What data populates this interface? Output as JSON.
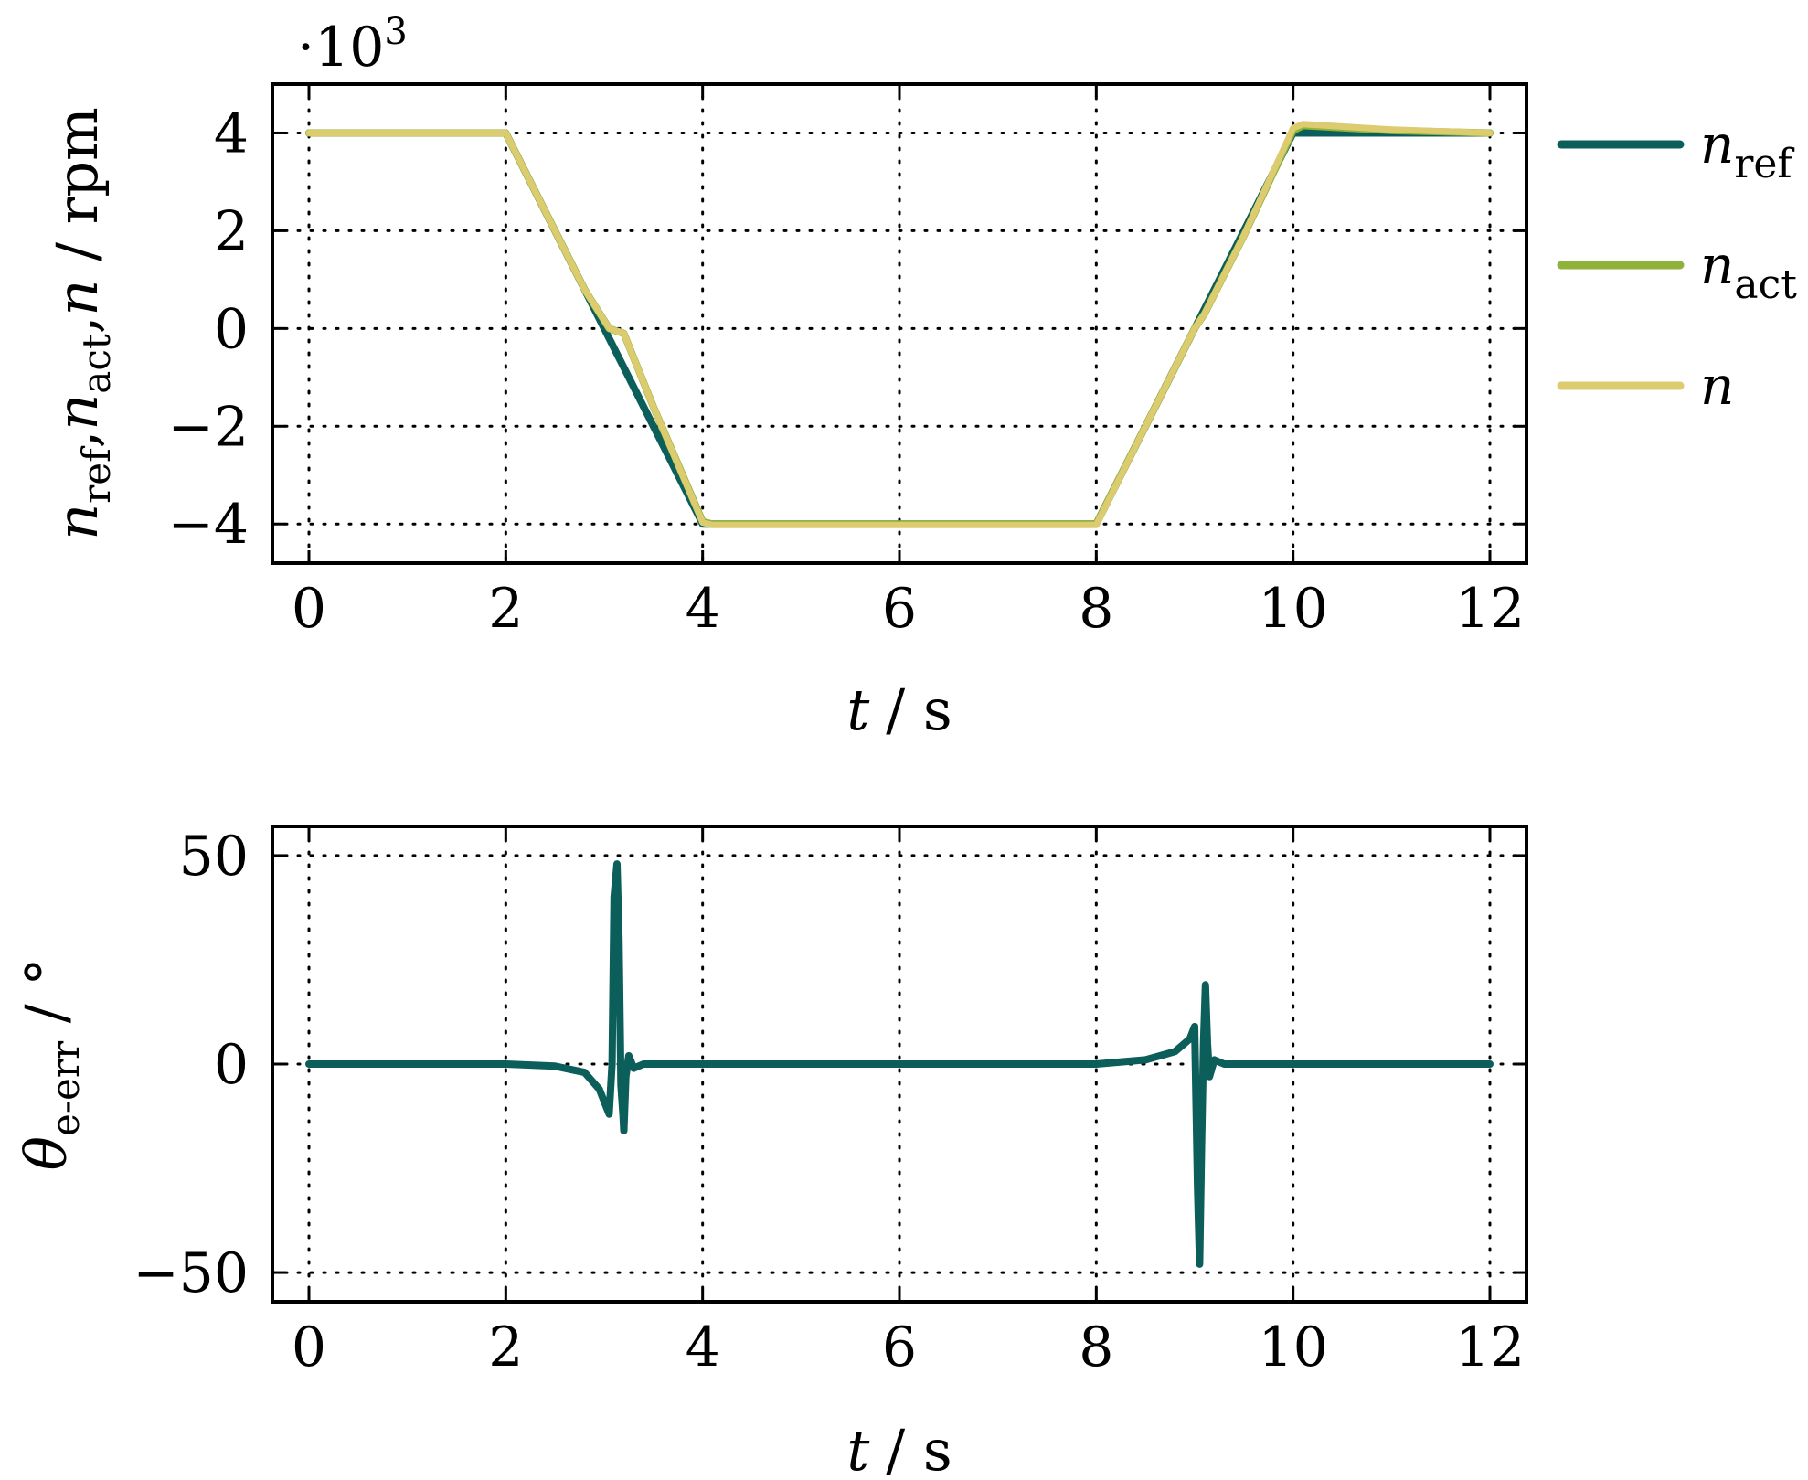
{
  "colors": {
    "n_ref": "#0b5e5a",
    "n_act": "#8fb33a",
    "n": "#dccb6f",
    "theta": "#0b5e5a"
  },
  "chart_data": [
    {
      "type": "line",
      "xlabel_var": "t",
      "xlabel_unit": "/  s",
      "ylabel": "n_ref, n_act, n  /  rpm",
      "ylabel_parts": {
        "v1": "n",
        "s1": "ref",
        "sep1": ",",
        "v2": "n",
        "s2": "act",
        "sep2": ",",
        "v3": "n",
        "unit": " /  rpm"
      },
      "multiplier_label": "·10",
      "multiplier_exp": "3",
      "xlim": [
        0,
        12
      ],
      "ylim": [
        -4.8,
        5.0
      ],
      "xticks": [
        0,
        2,
        4,
        6,
        8,
        10,
        12
      ],
      "xtick_labels": [
        "0",
        "2",
        "4",
        "6",
        "8",
        "10",
        "12"
      ],
      "yticks": [
        4,
        2,
        0,
        -2,
        -4
      ],
      "ytick_labels": [
        "4",
        "2",
        "0",
        "−2",
        "−4"
      ],
      "grid": true,
      "legend_position": "outside-right",
      "legend": [
        {
          "key": "n_ref",
          "var": "n",
          "sub": "ref"
        },
        {
          "key": "n_act",
          "var": "n",
          "sub": "act"
        },
        {
          "key": "n",
          "var": "n",
          "sub": ""
        }
      ],
      "series": [
        {
          "key": "n_ref",
          "name": "n_ref",
          "x": [
            0,
            2.0,
            4.0,
            8.0,
            10.0,
            12.0
          ],
          "y": [
            4.0,
            4.0,
            -4.0,
            -4.0,
            4.0,
            4.0
          ]
        },
        {
          "key": "n_act",
          "name": "n_act",
          "x": [
            0,
            2.0,
            2.3,
            2.8,
            3.05,
            3.12,
            3.2,
            3.5,
            4.0,
            4.1,
            8.0,
            8.5,
            9.0,
            9.1,
            9.2,
            9.5,
            10.0,
            10.1,
            11.0,
            12.0
          ],
          "y": [
            4.0,
            4.0,
            2.8,
            0.8,
            0.0,
            -0.05,
            -0.1,
            -1.6,
            -3.95,
            -4.0,
            -4.0,
            -2.0,
            0.0,
            0.3,
            0.7,
            1.9,
            4.05,
            4.15,
            4.05,
            4.0
          ]
        },
        {
          "key": "n",
          "name": "n",
          "x": [
            0,
            2.0,
            2.3,
            2.8,
            3.05,
            3.12,
            3.2,
            3.5,
            4.0,
            4.1,
            8.0,
            8.5,
            9.0,
            9.1,
            9.2,
            9.5,
            10.0,
            10.1,
            11.0,
            12.0
          ],
          "y": [
            4.0,
            4.0,
            2.8,
            0.8,
            0.0,
            -0.05,
            -0.1,
            -1.6,
            -3.97,
            -4.02,
            -4.02,
            -2.0,
            0.0,
            0.3,
            0.7,
            1.9,
            4.1,
            4.18,
            4.07,
            4.0
          ]
        }
      ]
    },
    {
      "type": "line",
      "xlabel_var": "t",
      "xlabel_unit": "/  s",
      "ylabel": "θ_e-err  /  °",
      "ylabel_parts": {
        "v1": "θ",
        "s1": "e-err",
        "unit": "  /  °"
      },
      "xlim": [
        0,
        12
      ],
      "ylim": [
        -57,
        57
      ],
      "xticks": [
        0,
        2,
        4,
        6,
        8,
        10,
        12
      ],
      "xtick_labels": [
        "0",
        "2",
        "4",
        "6",
        "8",
        "10",
        "12"
      ],
      "yticks": [
        50,
        0,
        -50
      ],
      "ytick_labels": [
        "50",
        "0",
        "−50"
      ],
      "grid": true,
      "series": [
        {
          "key": "theta",
          "name": "θ_e-err",
          "x": [
            0,
            2.0,
            2.5,
            2.8,
            2.95,
            3.05,
            3.08,
            3.1,
            3.13,
            3.15,
            3.17,
            3.19,
            3.2,
            3.22,
            3.25,
            3.3,
            3.4,
            4.0,
            8.0,
            8.5,
            8.8,
            8.95,
            9.0,
            9.03,
            9.05,
            9.07,
            9.09,
            9.11,
            9.13,
            9.15,
            9.2,
            9.3,
            10.0,
            12.0
          ],
          "y": [
            0,
            0,
            -0.5,
            -2,
            -6,
            -12,
            0,
            40,
            48,
            30,
            -5,
            -12,
            -16,
            -3,
            2,
            -1,
            0,
            0,
            0,
            1,
            3,
            6,
            9,
            -30,
            -48,
            -20,
            5,
            19,
            5,
            -3,
            1,
            0,
            0,
            0
          ]
        }
      ]
    }
  ]
}
